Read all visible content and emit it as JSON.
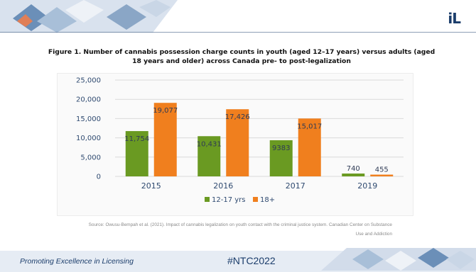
{
  "slide": {
    "logo_text": "iL",
    "figure_title": "Figure 1. Number of cannabis possession charge counts in youth (aged 12–17 years) versus adults (aged 18 years and older) across Canada pre- to post-legalization",
    "source_text": "Source: Owusu-Bempah et al. (2021). Impact of cannabis legalization on youth contact with the criminal justice system. Canadian Center on Substance Use and Addiction",
    "footer_tagline": "Promoting Excellence in Licensing",
    "footer_hashtag": "#NTC2022"
  },
  "colors": {
    "youth": "#6a9a22",
    "adult": "#f07f1e",
    "grid": "#dadada",
    "accent_navy": "#1b3d6b"
  },
  "chart_data": {
    "type": "bar",
    "categories": [
      "2015",
      "2016",
      "2017",
      "2019"
    ],
    "series": [
      {
        "name": "12-17 yrs",
        "values": [
          11754,
          10431,
          9383,
          740
        ],
        "labels": [
          "11,754",
          "10,431",
          "9383",
          "740"
        ]
      },
      {
        "name": "18+",
        "values": [
          19077,
          17426,
          15017,
          455
        ],
        "labels": [
          "19,077",
          "17,426",
          "15,017",
          "455"
        ]
      }
    ],
    "ylim": [
      0,
      25000
    ],
    "yticks": [
      0,
      5000,
      10000,
      15000,
      20000,
      25000
    ],
    "ytick_labels": [
      "0",
      "5,000",
      "10,000",
      "15,000",
      "20,000",
      "25,000"
    ],
    "grid": true,
    "legend_position": "bottom-center"
  }
}
